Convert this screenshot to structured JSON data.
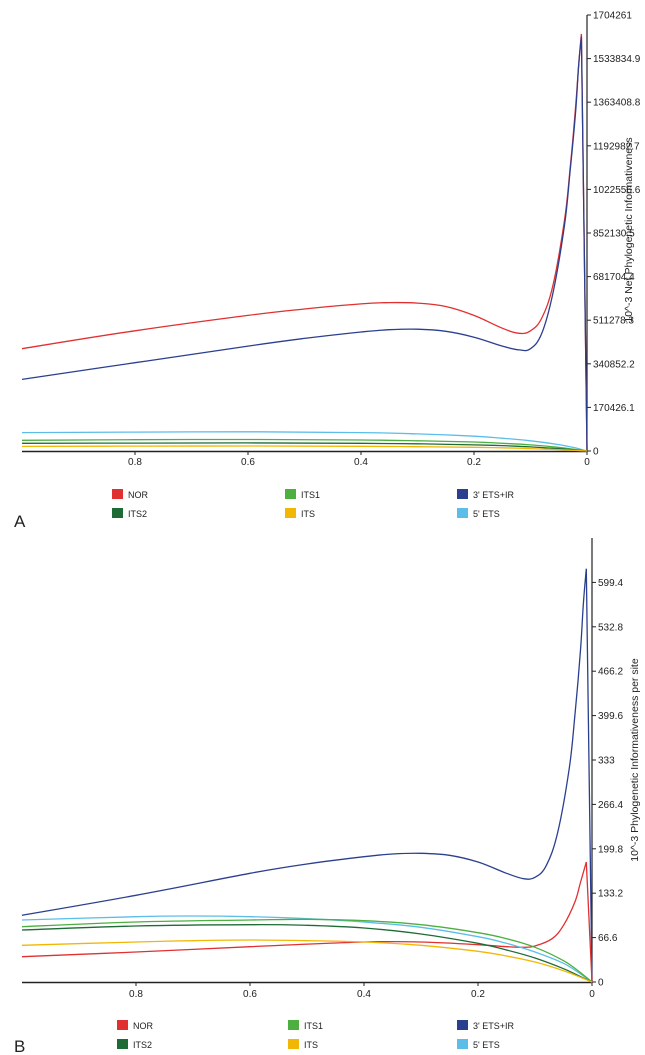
{
  "chart_data": [
    {
      "panel_label": "A",
      "type": "line",
      "xlabel": "",
      "ylabel": "10^-3 Net Phylogenetic Informativeness",
      "xlim": [
        1.0,
        0.0
      ],
      "ylim": [
        0,
        1704261
      ],
      "xticks": [
        "0.8",
        "0.6",
        "0.4",
        "0.2",
        "0"
      ],
      "yticks": [
        "0",
        "170426.1",
        "340852.2",
        "511278.3",
        "681704.4",
        "852130.5",
        "1022556.6",
        "1192982.7",
        "1363408.8",
        "1533834.9",
        "1704261"
      ],
      "series": [
        {
          "name": "NOR",
          "color": "#e03030",
          "x": [
            1.0,
            0.8,
            0.6,
            0.5,
            0.4,
            0.35,
            0.3,
            0.25,
            0.2,
            0.15,
            0.12,
            0.1,
            0.08,
            0.06,
            0.04,
            0.03,
            0.02,
            0.015,
            0.01,
            0.0
          ],
          "y": [
            400000,
            470000,
            530000,
            555000,
            575000,
            580000,
            578000,
            565000,
            530000,
            480000,
            460000,
            470000,
            520000,
            650000,
            900000,
            1100000,
            1350000,
            1500000,
            1630000,
            0
          ]
        },
        {
          "name": "3' ETS+IR",
          "color": "#2b3f8f",
          "x": [
            1.0,
            0.8,
            0.6,
            0.5,
            0.4,
            0.35,
            0.3,
            0.25,
            0.2,
            0.15,
            0.12,
            0.1,
            0.08,
            0.06,
            0.04,
            0.03,
            0.02,
            0.015,
            0.01,
            0.0
          ],
          "y": [
            280000,
            345000,
            410000,
            440000,
            465000,
            474000,
            476000,
            468000,
            445000,
            410000,
            395000,
            400000,
            460000,
            620000,
            880000,
            1090000,
            1330000,
            1500000,
            1620000,
            0
          ]
        },
        {
          "name": "5' ETS",
          "color": "#5bbde8",
          "x": [
            1.0,
            0.8,
            0.6,
            0.4,
            0.3,
            0.2,
            0.15,
            0.1,
            0.05,
            0.02,
            0.0
          ],
          "y": [
            72000,
            74000,
            75000,
            72000,
            67000,
            58000,
            50000,
            40000,
            25000,
            12000,
            0
          ]
        },
        {
          "name": "ITS1",
          "color": "#4caf3f",
          "x": [
            1.0,
            0.8,
            0.6,
            0.4,
            0.3,
            0.2,
            0.15,
            0.1,
            0.05,
            0.02,
            0.0
          ],
          "y": [
            42000,
            44000,
            45000,
            43000,
            40000,
            35000,
            30000,
            24000,
            14000,
            6000,
            0
          ]
        },
        {
          "name": "ITS2",
          "color": "#1e6b35",
          "x": [
            1.0,
            0.8,
            0.6,
            0.4,
            0.3,
            0.2,
            0.15,
            0.1,
            0.05,
            0.02,
            0.0
          ],
          "y": [
            30000,
            31000,
            31500,
            30000,
            28000,
            24000,
            21000,
            16000,
            9000,
            4000,
            0
          ]
        },
        {
          "name": "ITS",
          "color": "#f2b705",
          "x": [
            1.0,
            0.8,
            0.6,
            0.4,
            0.3,
            0.2,
            0.15,
            0.1,
            0.05,
            0.02,
            0.0
          ],
          "y": [
            18000,
            19000,
            19500,
            18500,
            17000,
            14500,
            12500,
            9500,
            5500,
            2500,
            0
          ]
        }
      ],
      "legend": [
        "NOR",
        "ITS1",
        "3' ETS+IR",
        "ITS2",
        "ITS",
        "5' ETS"
      ],
      "legend_position": "bottom"
    },
    {
      "panel_label": "B",
      "type": "line",
      "xlabel": "",
      "ylabel": "10^-3 Phylogenetic Informativeness per site",
      "xlim": [
        1.0,
        0.0
      ],
      "ylim": [
        0,
        666
      ],
      "xticks": [
        "0.8",
        "0.6",
        "0.4",
        "0.2",
        "0"
      ],
      "yticks": [
        "0",
        "66.6",
        "133.2",
        "199.8",
        "266.4",
        "333",
        "399.6",
        "466.2",
        "532.8",
        "599.4"
      ],
      "series": [
        {
          "name": "3' ETS+IR",
          "color": "#2b3f8f",
          "x": [
            1.0,
            0.8,
            0.6,
            0.5,
            0.4,
            0.35,
            0.3,
            0.25,
            0.2,
            0.15,
            0.12,
            0.1,
            0.08,
            0.06,
            0.04,
            0.03,
            0.02,
            0.015,
            0.01,
            0.0
          ],
          "y": [
            100,
            130,
            163,
            177,
            188,
            192,
            193,
            190,
            180,
            163,
            155,
            157,
            175,
            225,
            320,
            400,
            500,
            570,
            620,
            0
          ]
        },
        {
          "name": "NOR",
          "color": "#e03030",
          "x": [
            1.0,
            0.8,
            0.6,
            0.4,
            0.3,
            0.2,
            0.15,
            0.12,
            0.1,
            0.07,
            0.05,
            0.03,
            0.02,
            0.01,
            0.0
          ],
          "y": [
            38,
            45,
            53,
            60,
            60,
            56,
            53,
            52,
            54,
            65,
            85,
            120,
            150,
            180,
            0
          ]
        },
        {
          "name": "5' ETS",
          "color": "#5bbde8",
          "x": [
            1.0,
            0.8,
            0.7,
            0.6,
            0.5,
            0.4,
            0.3,
            0.2,
            0.15,
            0.1,
            0.05,
            0.02,
            0.0
          ],
          "y": [
            93,
            98,
            99,
            98,
            95,
            90,
            82,
            68,
            58,
            45,
            28,
            12,
            0
          ]
        },
        {
          "name": "ITS1",
          "color": "#4caf3f",
          "x": [
            1.0,
            0.8,
            0.6,
            0.5,
            0.4,
            0.3,
            0.2,
            0.15,
            0.1,
            0.05,
            0.02,
            0.0
          ],
          "y": [
            83,
            90,
            93,
            94,
            92,
            86,
            74,
            65,
            52,
            32,
            14,
            0
          ]
        },
        {
          "name": "ITS2",
          "color": "#1e6b35",
          "x": [
            1.0,
            0.8,
            0.6,
            0.5,
            0.4,
            0.3,
            0.2,
            0.15,
            0.1,
            0.05,
            0.02,
            0.0
          ],
          "y": [
            78,
            84,
            86,
            85,
            81,
            72,
            58,
            48,
            36,
            20,
            8,
            0
          ]
        },
        {
          "name": "ITS",
          "color": "#f2b705",
          "x": [
            1.0,
            0.8,
            0.7,
            0.6,
            0.5,
            0.4,
            0.3,
            0.2,
            0.15,
            0.1,
            0.05,
            0.02,
            0.0
          ],
          "y": [
            55,
            60,
            62,
            63,
            62,
            60,
            55,
            46,
            39,
            30,
            17,
            7,
            0
          ]
        }
      ],
      "legend": [
        "NOR",
        "ITS1",
        "3' ETS+IR",
        "ITS2",
        "ITS",
        "5' ETS"
      ],
      "legend_position": "bottom"
    }
  ]
}
